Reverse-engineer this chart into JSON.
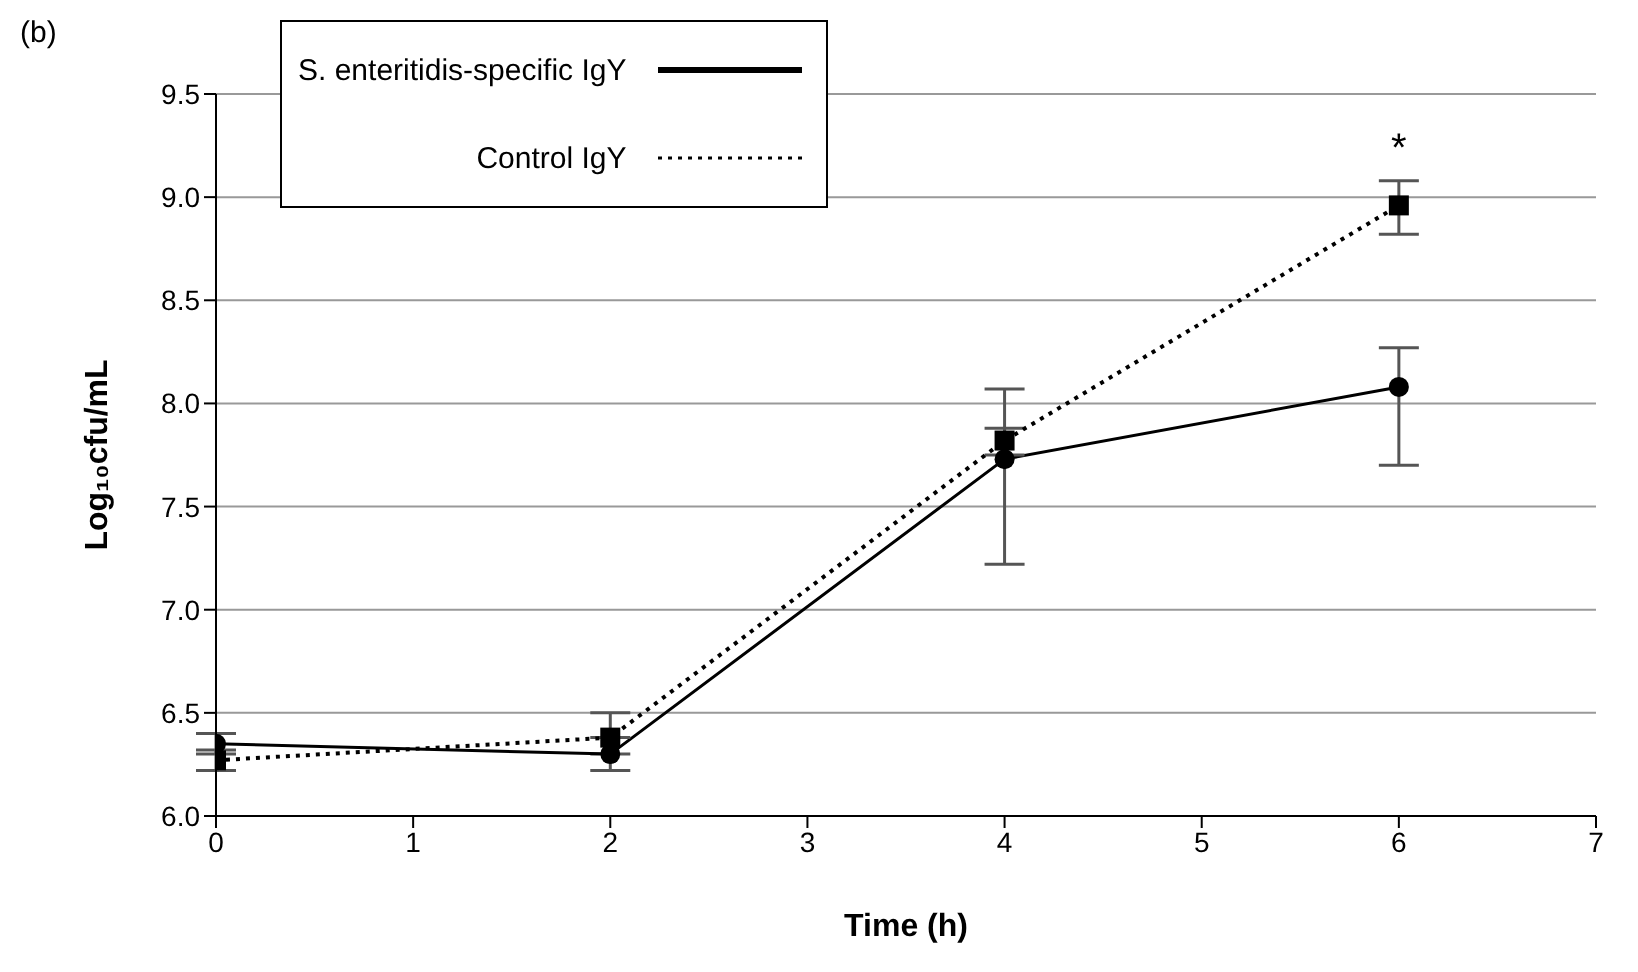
{
  "chart_data": {
    "type": "line",
    "xlabel": "Time (h)",
    "ylabel": "Log₁₀cfu/mL",
    "xlim": [
      0,
      7
    ],
    "xticks": [
      0,
      1,
      2,
      3,
      4,
      5,
      6,
      7
    ],
    "ylim": [
      6.0,
      9.5
    ],
    "yticks": [
      {
        "value": 6.0,
        "label": "6.0"
      },
      {
        "value": 6.5,
        "label": "6.5"
      },
      {
        "value": 7.0,
        "label": "7.0"
      },
      {
        "value": 7.5,
        "label": "7.5"
      },
      {
        "value": 8.0,
        "label": "8.0"
      },
      {
        "value": 8.5,
        "label": "8.5"
      },
      {
        "value": 9.0,
        "label": "9.0"
      },
      {
        "value": 9.5,
        "label": "9.5"
      }
    ],
    "grid": "y",
    "legend": "top left",
    "series": [
      {
        "name": "S. enteritidis-specific IgY",
        "color": "#000000",
        "line_style": "solid",
        "marker": "circle",
        "x": [
          0,
          2,
          4,
          6
        ],
        "values": [
          6.35,
          6.3,
          7.73,
          8.08
        ],
        "errors": [
          [
            6.3,
            6.4
          ],
          [
            6.22,
            6.3
          ],
          [
            7.22,
            8.07
          ],
          [
            7.7,
            8.27
          ]
        ]
      },
      {
        "name": "Control IgY",
        "color": "#000000",
        "line_style": "dotted",
        "marker": "square",
        "x": [
          0,
          2,
          4,
          6
        ],
        "values": [
          6.27,
          6.38,
          7.82,
          8.96
        ],
        "errors": [
          [
            6.22,
            6.32
          ],
          [
            6.38,
            6.5
          ],
          [
            7.75,
            7.88
          ],
          [
            8.82,
            9.08
          ]
        ]
      }
    ],
    "annotations": [
      "(b)",
      {
        "text": "*",
        "x": 6,
        "y": 8.96
      }
    ]
  }
}
